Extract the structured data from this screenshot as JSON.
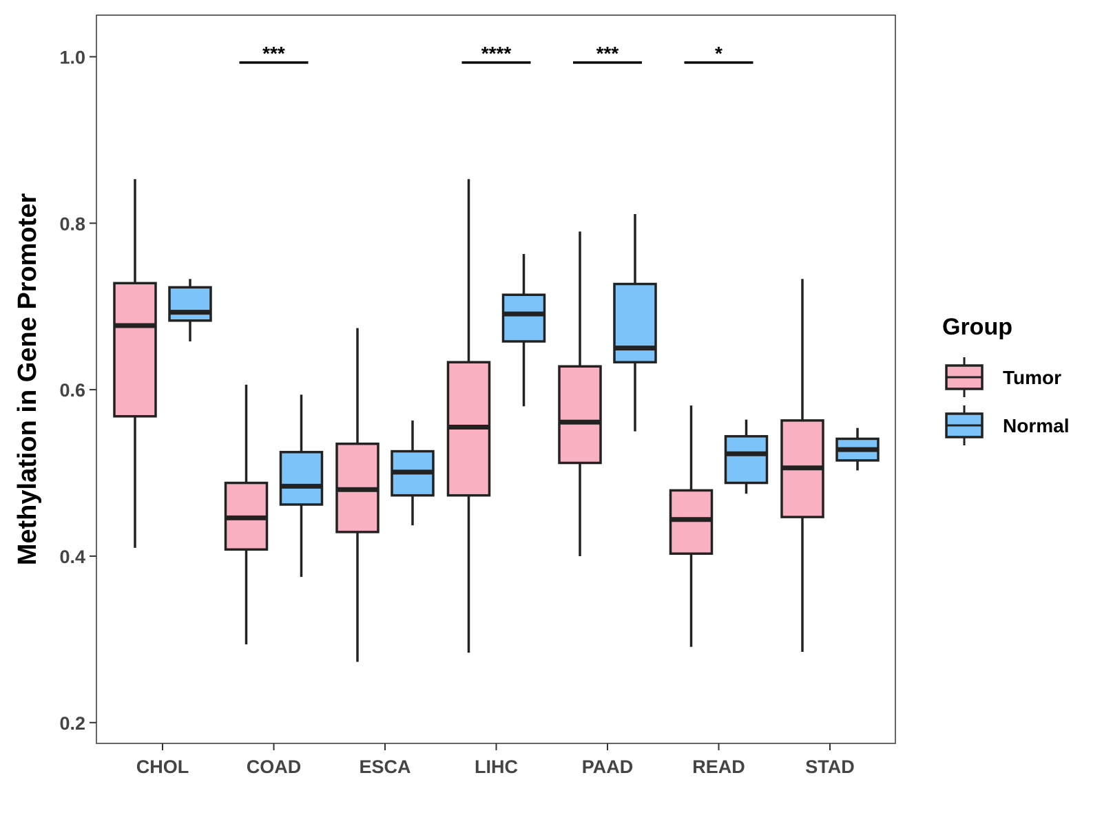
{
  "chart_data": {
    "type": "boxplot",
    "title": "",
    "xlabel": "",
    "ylabel": "Methylation in Gene Promoter",
    "ylim": [
      0.175,
      1.05
    ],
    "yticks": [
      0.2,
      0.4,
      0.6,
      0.8,
      1.0
    ],
    "ytick_labels": [
      "0.2",
      "0.4",
      "0.6",
      "0.8",
      "1.0"
    ],
    "grid": false,
    "categories": [
      "CHOL",
      "COAD",
      "ESCA",
      "LIHC",
      "PAAD",
      "READ",
      "STAD"
    ],
    "legend": {
      "title": "Group",
      "position": "right",
      "entries": [
        {
          "name": "Tumor",
          "color": "#f9b0c1"
        },
        {
          "name": "Normal",
          "color": "#7cc3f9"
        }
      ]
    },
    "series": [
      {
        "name": "Tumor",
        "color": "#f9b0c1",
        "boxes": [
          {
            "category": "CHOL",
            "min": 0.41,
            "q1": 0.568,
            "median": 0.677,
            "q3": 0.728,
            "max": 0.853
          },
          {
            "category": "COAD",
            "min": 0.294,
            "q1": 0.408,
            "median": 0.446,
            "q3": 0.488,
            "max": 0.606
          },
          {
            "category": "ESCA",
            "min": 0.273,
            "q1": 0.429,
            "median": 0.48,
            "q3": 0.535,
            "max": 0.674
          },
          {
            "category": "LIHC",
            "min": 0.284,
            "q1": 0.473,
            "median": 0.555,
            "q3": 0.633,
            "max": 0.853
          },
          {
            "category": "PAAD",
            "min": 0.4,
            "q1": 0.512,
            "median": 0.561,
            "q3": 0.628,
            "max": 0.79
          },
          {
            "category": "READ",
            "min": 0.291,
            "q1": 0.403,
            "median": 0.444,
            "q3": 0.479,
            "max": 0.581
          },
          {
            "category": "STAD",
            "min": 0.285,
            "q1": 0.447,
            "median": 0.506,
            "q3": 0.563,
            "max": 0.733
          }
        ]
      },
      {
        "name": "Normal",
        "color": "#7cc3f9",
        "boxes": [
          {
            "category": "CHOL",
            "min": 0.658,
            "q1": 0.683,
            "median": 0.693,
            "q3": 0.723,
            "max": 0.733
          },
          {
            "category": "COAD",
            "min": 0.375,
            "q1": 0.462,
            "median": 0.484,
            "q3": 0.525,
            "max": 0.594
          },
          {
            "category": "ESCA",
            "min": 0.437,
            "q1": 0.473,
            "median": 0.501,
            "q3": 0.526,
            "max": 0.563
          },
          {
            "category": "LIHC",
            "min": 0.58,
            "q1": 0.658,
            "median": 0.691,
            "q3": 0.714,
            "max": 0.763
          },
          {
            "category": "PAAD",
            "min": 0.55,
            "q1": 0.633,
            "median": 0.65,
            "q3": 0.727,
            "max": 0.811
          },
          {
            "category": "READ",
            "min": 0.475,
            "q1": 0.488,
            "median": 0.523,
            "q3": 0.544,
            "max": 0.564
          },
          {
            "category": "STAD",
            "min": 0.503,
            "q1": 0.515,
            "median": 0.528,
            "q3": 0.541,
            "max": 0.554
          }
        ]
      }
    ],
    "annotations": [
      {
        "category": "COAD",
        "text": "***",
        "y": 0.993
      },
      {
        "category": "LIHC",
        "text": "****",
        "y": 0.993
      },
      {
        "category": "PAAD",
        "text": "***",
        "y": 0.993
      },
      {
        "category": "READ",
        "text": "*",
        "y": 0.993
      }
    ]
  }
}
